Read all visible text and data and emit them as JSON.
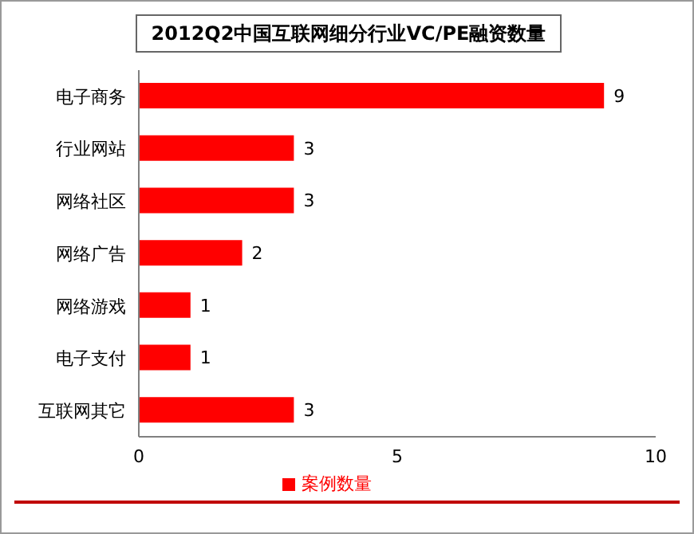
{
  "chart_data": {
    "type": "bar",
    "title": "2012Q2中国互联网细分行业VC/PE融资数量",
    "orientation": "horizontal",
    "categories": [
      "电子商务",
      "行业网站",
      "网络社区",
      "网络广告",
      "网络游戏",
      "电子支付",
      "互联网其它"
    ],
    "series": [
      {
        "name": "案例数量",
        "color": "#ff0000",
        "values": [
          9,
          3,
          3,
          2,
          1,
          1,
          3
        ]
      }
    ],
    "xlim": [
      0,
      10
    ],
    "xticks": [
      0,
      5,
      10
    ],
    "data_labels": true,
    "legend": "bottom"
  }
}
